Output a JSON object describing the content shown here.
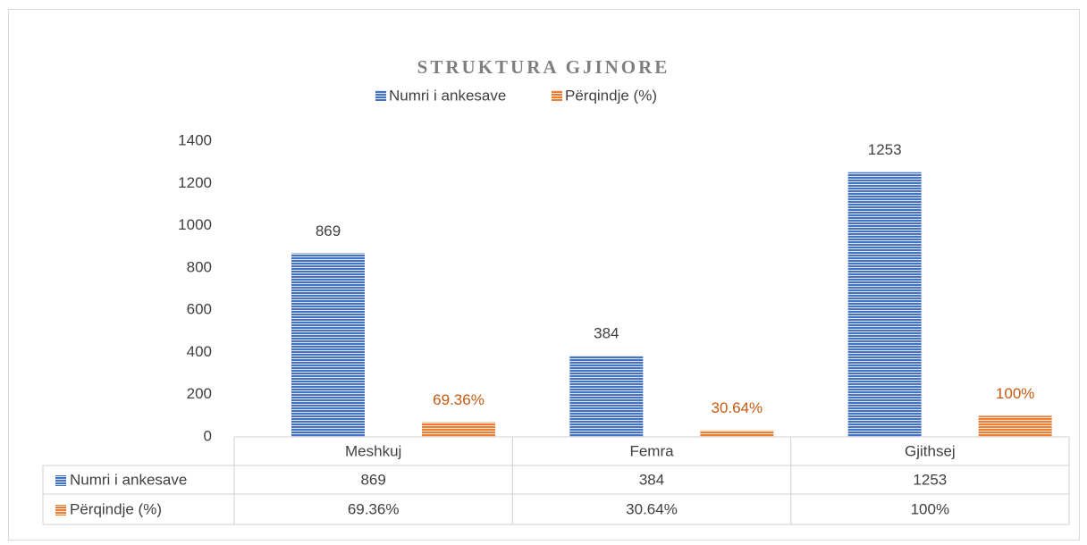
{
  "chart_data": {
    "type": "bar",
    "title": "STRUKTURA GJINORE",
    "categories": [
      "Meshkuj",
      "Femra",
      "Gjithsej"
    ],
    "series": [
      {
        "name": "Numri i ankesave",
        "color": "#4472c4",
        "values": [
          869,
          384,
          1253
        ]
      },
      {
        "name": "Përqindje (%)",
        "color": "#ed7d31",
        "values": [
          69.36,
          30.64,
          100
        ],
        "value_labels": [
          "69.36%",
          "30.64%",
          "100%"
        ],
        "label_color": "#c55a11"
      }
    ],
    "ylim": [
      0,
      1400
    ],
    "yticks": [
      0,
      200,
      400,
      600,
      800,
      1000,
      1200,
      1400
    ],
    "legend": "top",
    "data_table": true
  }
}
